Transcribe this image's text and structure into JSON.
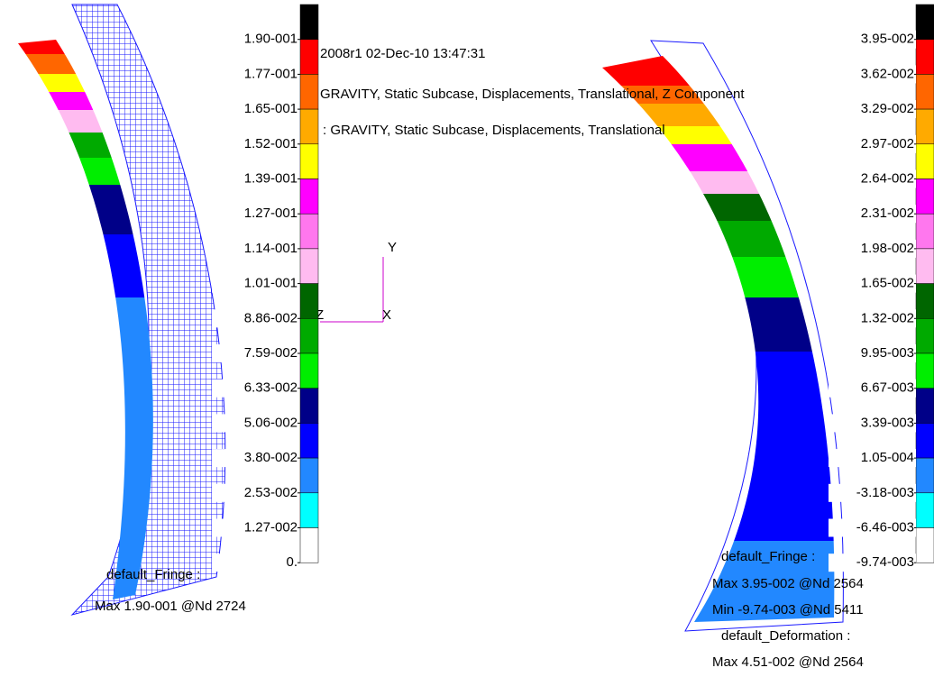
{
  "header": {
    "lines": [
      "2008r1 02-Dec-10 13:47:31",
      "GRAVITY, Static Subcase, Displacements, Translational, Z Component",
      ": GRAVITY, Static Subcase, Displacements, Translational"
    ]
  },
  "left_panel": {
    "legend_labels": [
      "1.90-001",
      "1.77-001",
      "1.65-001",
      "1.52-001",
      "1.39-001",
      "1.27-001",
      "1.14-001",
      "1.01-001",
      "8.86-002",
      "7.59-002",
      "6.33-002",
      "5.06-002",
      "3.80-002",
      "2.53-002",
      "1.27-002",
      "0."
    ],
    "footer": [
      "default_Fringe :",
      "Max 1.90-001 @Nd 2724"
    ],
    "axes": {
      "y": "Y",
      "z": "Z",
      "x": "X"
    }
  },
  "right_panel": {
    "legend_labels": [
      "3.95-002",
      "3.62-002",
      "3.29-002",
      "2.97-002",
      "2.64-002",
      "2.31-002",
      "1.98-002",
      "1.65-002",
      "1.32-002",
      "9.95-003",
      "6.67-003",
      "3.39-003",
      "1.05-004",
      "-3.18-003",
      "-6.46-003",
      "-9.74-003"
    ],
    "footer": [
      "default_Fringe :",
      "Max 3.95-002 @Nd 2564",
      "Min -9.74-003 @Nd 5411",
      "default_Deformation :",
      "Max 4.51-002 @Nd 2564"
    ]
  },
  "legend_colors": [
    "#000000",
    "#ff0000",
    "#ff6600",
    "#ffaa00",
    "#ffff00",
    "#ff00ff",
    "#ff77ee",
    "#ffbbf0",
    "#006600",
    "#00aa00",
    "#00ee00",
    "#000088",
    "#0000ff",
    "#2288ff",
    "#00ffff",
    "#ffffff"
  ]
}
